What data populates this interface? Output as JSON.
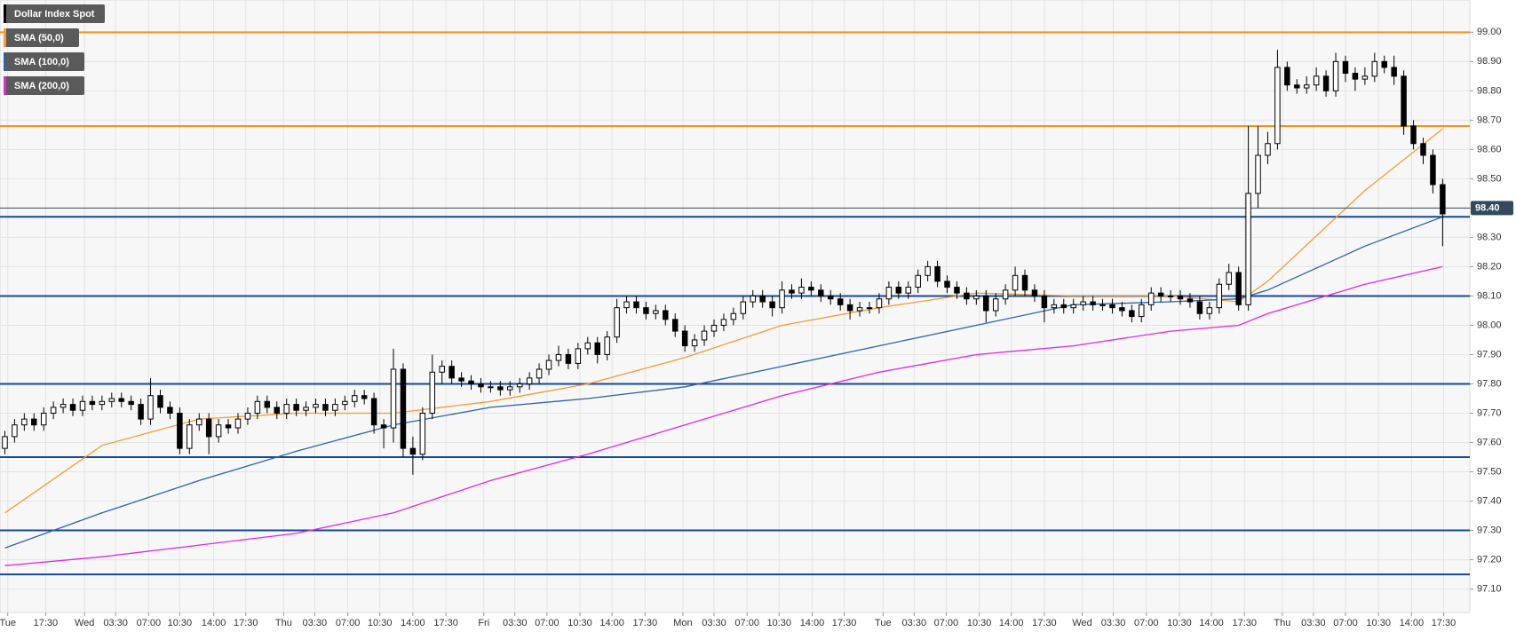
{
  "chart_data": {
    "type": "candlestick",
    "instrument": {
      "name": "Dollar Index Spot",
      "color": "#000000",
      "up_color": "#ffffff",
      "down_color": "#000000"
    },
    "ylim": [
      97.02,
      99.11
    ],
    "yticks": [
      {
        "value": 97.1,
        "label": "97.10"
      },
      {
        "value": 97.2,
        "label": "97.20"
      },
      {
        "value": 97.3,
        "label": "97.30"
      },
      {
        "value": 97.4,
        "label": "97.40"
      },
      {
        "value": 97.5,
        "label": "97.50"
      },
      {
        "value": 97.6,
        "label": "97.60"
      },
      {
        "value": 97.7,
        "label": "97.70"
      },
      {
        "value": 97.8,
        "label": "97.80"
      },
      {
        "value": 97.9,
        "label": "97.90"
      },
      {
        "value": 98.0,
        "label": "98.00"
      },
      {
        "value": 98.1,
        "label": "98.10"
      },
      {
        "value": 98.2,
        "label": "98.20"
      },
      {
        "value": 98.3,
        "label": "98.30"
      },
      {
        "value": 98.4,
        "label": "98.40"
      },
      {
        "value": 98.5,
        "label": "98.50"
      },
      {
        "value": 98.6,
        "label": "98.60"
      },
      {
        "value": 98.7,
        "label": "98.70"
      },
      {
        "value": 98.8,
        "label": "98.80"
      },
      {
        "value": 98.9,
        "label": "98.90"
      },
      {
        "value": 99.0,
        "label": "99.00"
      }
    ],
    "xlim": [
      -0.5,
      150.8
    ],
    "xticks": [
      {
        "value": 0.3,
        "label": "Tue"
      },
      {
        "value": 4.2,
        "label": "17:30"
      },
      {
        "value": 8.2,
        "label": "Wed"
      },
      {
        "value": 11.4,
        "label": "03:30"
      },
      {
        "value": 14.8,
        "label": "07:00"
      },
      {
        "value": 18.0,
        "label": "10:30"
      },
      {
        "value": 21.5,
        "label": "14:00"
      },
      {
        "value": 24.8,
        "label": "17:30"
      },
      {
        "value": 28.7,
        "label": "Thu"
      },
      {
        "value": 31.9,
        "label": "03:30"
      },
      {
        "value": 35.3,
        "label": "07:00"
      },
      {
        "value": 38.6,
        "label": "10:30"
      },
      {
        "value": 42.0,
        "label": "14:00"
      },
      {
        "value": 45.4,
        "label": "17:30"
      },
      {
        "value": 49.3,
        "label": "Fri"
      },
      {
        "value": 52.5,
        "label": "03:30"
      },
      {
        "value": 55.8,
        "label": "07:00"
      },
      {
        "value": 59.2,
        "label": "10:30"
      },
      {
        "value": 62.5,
        "label": "14:00"
      },
      {
        "value": 65.9,
        "label": "17:30"
      },
      {
        "value": 69.8,
        "label": "Mon"
      },
      {
        "value": 73.0,
        "label": "03:30"
      },
      {
        "value": 76.4,
        "label": "07:00"
      },
      {
        "value": 79.7,
        "label": "10:30"
      },
      {
        "value": 83.1,
        "label": "14:00"
      },
      {
        "value": 86.4,
        "label": "17:30"
      },
      {
        "value": 90.4,
        "label": "Tue"
      },
      {
        "value": 93.6,
        "label": "03:30"
      },
      {
        "value": 96.9,
        "label": "07:00"
      },
      {
        "value": 100.3,
        "label": "10:30"
      },
      {
        "value": 103.6,
        "label": "14:00"
      },
      {
        "value": 107.0,
        "label": "17:30"
      },
      {
        "value": 110.9,
        "label": "Wed"
      },
      {
        "value": 114.1,
        "label": "03:30"
      },
      {
        "value": 117.5,
        "label": "07:00"
      },
      {
        "value": 120.9,
        "label": "10:30"
      },
      {
        "value": 124.2,
        "label": "14:00"
      },
      {
        "value": 127.6,
        "label": "17:30"
      },
      {
        "value": 131.5,
        "label": "Thu"
      },
      {
        "value": 134.7,
        "label": "03:30"
      },
      {
        "value": 138.0,
        "label": "07:00"
      },
      {
        "value": 141.4,
        "label": "10:30"
      },
      {
        "value": 144.8,
        "label": "14:00"
      },
      {
        "value": 148.1,
        "label": "17:30"
      }
    ],
    "grid": true,
    "ohlc": [
      [
        97.58,
        97.64,
        97.56,
        97.62
      ],
      [
        97.62,
        97.68,
        97.6,
        97.66
      ],
      [
        97.66,
        97.7,
        97.64,
        97.68
      ],
      [
        97.68,
        97.7,
        97.64,
        97.66
      ],
      [
        97.66,
        97.72,
        97.64,
        97.7
      ],
      [
        97.7,
        97.74,
        97.68,
        97.72
      ],
      [
        97.72,
        97.75,
        97.7,
        97.73
      ],
      [
        97.73,
        97.75,
        97.69,
        97.71
      ],
      [
        97.71,
        97.76,
        97.69,
        97.74
      ],
      [
        97.74,
        97.76,
        97.71,
        97.73
      ],
      [
        97.73,
        97.76,
        97.71,
        97.74
      ],
      [
        97.74,
        97.77,
        97.72,
        97.75
      ],
      [
        97.75,
        97.77,
        97.72,
        97.74
      ],
      [
        97.74,
        97.76,
        97.71,
        97.73
      ],
      [
        97.73,
        97.75,
        97.66,
        97.68
      ],
      [
        97.68,
        97.82,
        97.66,
        97.76
      ],
      [
        97.76,
        97.78,
        97.7,
        97.72
      ],
      [
        97.72,
        97.74,
        97.68,
        97.7
      ],
      [
        97.7,
        97.72,
        97.56,
        97.58
      ],
      [
        97.58,
        97.68,
        97.56,
        97.66
      ],
      [
        97.66,
        97.7,
        97.64,
        97.68
      ],
      [
        97.68,
        97.7,
        97.56,
        97.62
      ],
      [
        97.62,
        97.68,
        97.6,
        97.66
      ],
      [
        97.66,
        97.68,
        97.63,
        97.65
      ],
      [
        97.65,
        97.7,
        97.63,
        97.68
      ],
      [
        97.68,
        97.72,
        97.66,
        97.7
      ],
      [
        97.7,
        97.76,
        97.68,
        97.74
      ],
      [
        97.74,
        97.76,
        97.7,
        97.72
      ],
      [
        97.72,
        97.74,
        97.68,
        97.7
      ],
      [
        97.7,
        97.75,
        97.68,
        97.73
      ],
      [
        97.73,
        97.75,
        97.69,
        97.71
      ],
      [
        97.71,
        97.74,
        97.69,
        97.72
      ],
      [
        97.72,
        97.75,
        97.7,
        97.73
      ],
      [
        97.73,
        97.75,
        97.69,
        97.71
      ],
      [
        97.71,
        97.75,
        97.69,
        97.73
      ],
      [
        97.73,
        97.76,
        97.71,
        97.74
      ],
      [
        97.74,
        97.78,
        97.72,
        97.76
      ],
      [
        97.76,
        97.78,
        97.73,
        97.75
      ],
      [
        97.75,
        97.77,
        97.63,
        97.66
      ],
      [
        97.66,
        97.68,
        97.58,
        97.65
      ],
      [
        97.65,
        97.92,
        97.6,
        97.85
      ],
      [
        97.85,
        97.87,
        97.55,
        97.58
      ],
      [
        97.58,
        97.62,
        97.49,
        97.56
      ],
      [
        97.56,
        97.72,
        97.54,
        97.7
      ],
      [
        97.7,
        97.9,
        97.68,
        97.84
      ],
      [
        97.84,
        97.88,
        97.8,
        97.86
      ],
      [
        97.86,
        97.88,
        97.8,
        97.82
      ],
      [
        97.82,
        97.84,
        97.79,
        97.81
      ],
      [
        97.81,
        97.83,
        97.78,
        97.8
      ],
      [
        97.8,
        97.82,
        97.77,
        97.79
      ],
      [
        97.79,
        97.81,
        97.77,
        97.79
      ],
      [
        97.79,
        97.81,
        97.76,
        97.78
      ],
      [
        97.78,
        97.81,
        97.76,
        97.79
      ],
      [
        97.79,
        97.82,
        97.77,
        97.8
      ],
      [
        97.8,
        97.84,
        97.78,
        97.82
      ],
      [
        97.82,
        97.87,
        97.8,
        97.85
      ],
      [
        97.85,
        97.9,
        97.83,
        97.88
      ],
      [
        97.88,
        97.93,
        97.86,
        97.9
      ],
      [
        97.9,
        97.92,
        97.85,
        97.87
      ],
      [
        97.87,
        97.94,
        97.85,
        97.92
      ],
      [
        97.92,
        97.96,
        97.9,
        97.94
      ],
      [
        97.94,
        97.96,
        97.87,
        97.9
      ],
      [
        97.9,
        97.98,
        97.88,
        97.96
      ],
      [
        97.96,
        98.09,
        97.94,
        98.06
      ],
      [
        98.06,
        98.1,
        98.04,
        98.08
      ],
      [
        98.08,
        98.1,
        98.04,
        98.06
      ],
      [
        98.06,
        98.08,
        98.02,
        98.04
      ],
      [
        98.04,
        98.07,
        98.02,
        98.05
      ],
      [
        98.05,
        98.07,
        98.0,
        98.02
      ],
      [
        98.02,
        98.04,
        97.96,
        97.98
      ],
      [
        97.98,
        98.0,
        97.91,
        97.93
      ],
      [
        97.93,
        97.97,
        97.91,
        97.95
      ],
      [
        97.95,
        98.0,
        97.93,
        97.98
      ],
      [
        97.98,
        98.02,
        97.96,
        98.0
      ],
      [
        98.0,
        98.04,
        97.98,
        98.02
      ],
      [
        98.02,
        98.06,
        98.0,
        98.04
      ],
      [
        98.04,
        98.1,
        98.02,
        98.08
      ],
      [
        98.08,
        98.12,
        98.06,
        98.1
      ],
      [
        98.1,
        98.12,
        98.06,
        98.08
      ],
      [
        98.08,
        98.1,
        98.03,
        98.06
      ],
      [
        98.06,
        98.15,
        98.04,
        98.12
      ],
      [
        98.12,
        98.14,
        98.09,
        98.11
      ],
      [
        98.11,
        98.16,
        98.09,
        98.13
      ],
      [
        98.13,
        98.15,
        98.1,
        98.12
      ],
      [
        98.12,
        98.14,
        98.08,
        98.1
      ],
      [
        98.1,
        98.12,
        98.07,
        98.09
      ],
      [
        98.09,
        98.11,
        98.05,
        98.07
      ],
      [
        98.07,
        98.09,
        98.02,
        98.05
      ],
      [
        98.05,
        98.08,
        98.03,
        98.06
      ],
      [
        98.06,
        98.08,
        98.04,
        98.06
      ],
      [
        98.06,
        98.11,
        98.04,
        98.09
      ],
      [
        98.09,
        98.15,
        98.07,
        98.13
      ],
      [
        98.13,
        98.15,
        98.09,
        98.11
      ],
      [
        98.11,
        98.15,
        98.09,
        98.13
      ],
      [
        98.13,
        98.19,
        98.11,
        98.17
      ],
      [
        98.17,
        98.22,
        98.15,
        98.2
      ],
      [
        98.2,
        98.22,
        98.13,
        98.15
      ],
      [
        98.15,
        98.17,
        98.11,
        98.13
      ],
      [
        98.13,
        98.15,
        98.09,
        98.11
      ],
      [
        98.11,
        98.13,
        98.07,
        98.09
      ],
      [
        98.09,
        98.12,
        98.07,
        98.1
      ],
      [
        98.1,
        98.12,
        98.01,
        98.05
      ],
      [
        98.05,
        98.11,
        98.03,
        98.09
      ],
      [
        98.09,
        98.14,
        98.07,
        98.12
      ],
      [
        98.12,
        98.2,
        98.1,
        98.17
      ],
      [
        98.17,
        98.19,
        98.1,
        98.12
      ],
      [
        98.12,
        98.14,
        98.08,
        98.1
      ],
      [
        98.1,
        98.12,
        98.01,
        98.06
      ],
      [
        98.06,
        98.09,
        98.04,
        98.07
      ],
      [
        98.07,
        98.09,
        98.04,
        98.06
      ],
      [
        98.06,
        98.09,
        98.04,
        98.07
      ],
      [
        98.07,
        98.1,
        98.05,
        98.08
      ],
      [
        98.08,
        98.1,
        98.05,
        98.07
      ],
      [
        98.07,
        98.09,
        98.05,
        98.07
      ],
      [
        98.07,
        98.09,
        98.04,
        98.06
      ],
      [
        98.06,
        98.08,
        98.03,
        98.05
      ],
      [
        98.05,
        98.07,
        98.01,
        98.03
      ],
      [
        98.03,
        98.09,
        98.01,
        98.07
      ],
      [
        98.07,
        98.13,
        98.05,
        98.11
      ],
      [
        98.11,
        98.13,
        98.08,
        98.1
      ],
      [
        98.1,
        98.12,
        98.08,
        98.1
      ],
      [
        98.1,
        98.12,
        98.07,
        98.09
      ],
      [
        98.09,
        98.11,
        98.06,
        98.08
      ],
      [
        98.08,
        98.1,
        98.02,
        98.04
      ],
      [
        98.04,
        98.08,
        98.02,
        98.06
      ],
      [
        98.06,
        98.16,
        98.04,
        98.14
      ],
      [
        98.14,
        98.21,
        98.12,
        98.18
      ],
      [
        98.18,
        98.2,
        98.05,
        98.07
      ],
      [
        98.07,
        98.68,
        98.05,
        98.45
      ],
      [
        98.45,
        98.68,
        98.4,
        98.58
      ],
      [
        98.58,
        98.66,
        98.55,
        98.62
      ],
      [
        98.62,
        98.94,
        98.6,
        98.88
      ],
      [
        98.88,
        98.9,
        98.8,
        98.82
      ],
      [
        98.82,
        98.84,
        98.79,
        98.81
      ],
      [
        98.81,
        98.85,
        98.79,
        98.82
      ],
      [
        98.82,
        98.88,
        98.8,
        98.85
      ],
      [
        98.85,
        98.87,
        98.78,
        98.8
      ],
      [
        98.8,
        98.93,
        98.78,
        98.9
      ],
      [
        98.9,
        98.92,
        98.83,
        98.86
      ],
      [
        98.86,
        98.88,
        98.8,
        98.84
      ],
      [
        98.84,
        98.88,
        98.82,
        98.85
      ],
      [
        98.85,
        98.93,
        98.83,
        98.9
      ],
      [
        98.9,
        98.92,
        98.86,
        98.88
      ],
      [
        98.88,
        98.92,
        98.82,
        98.85
      ],
      [
        98.85,
        98.87,
        98.65,
        98.68
      ],
      [
        98.68,
        98.7,
        98.6,
        98.62
      ],
      [
        98.62,
        98.64,
        98.55,
        98.58
      ],
      [
        98.58,
        98.6,
        98.45,
        98.48
      ],
      [
        98.48,
        98.5,
        98.27,
        98.38
      ]
    ],
    "overlays": [
      {
        "name": "SMA (50,0)",
        "color": "#f39c34",
        "x": [
          0,
          10,
          20,
          30,
          40,
          50,
          60,
          70,
          80,
          90,
          100,
          110,
          120,
          127,
          130,
          140,
          148
        ],
        "values": [
          97.36,
          97.59,
          97.68,
          97.7,
          97.7,
          97.74,
          97.8,
          97.89,
          98.0,
          98.06,
          98.11,
          98.1,
          98.1,
          98.08,
          98.15,
          98.46,
          98.67
        ]
      },
      {
        "name": "SMA (100,0)",
        "color": "#2d62a8",
        "x": [
          0,
          10,
          20,
          30,
          40,
          50,
          60,
          70,
          80,
          90,
          100,
          110,
          120,
          127,
          130,
          140,
          148
        ],
        "values": [
          97.24,
          97.36,
          97.47,
          97.57,
          97.66,
          97.72,
          97.75,
          97.79,
          97.86,
          97.93,
          98.0,
          98.07,
          98.08,
          98.09,
          98.12,
          98.27,
          98.37
        ]
      },
      {
        "name": "SMA (200,0)",
        "color": "#e028e0",
        "x": [
          0,
          10,
          20,
          30,
          40,
          50,
          60,
          70,
          80,
          90,
          100,
          110,
          120,
          127,
          130,
          140,
          148
        ],
        "values": [
          97.18,
          97.21,
          97.25,
          97.29,
          97.36,
          97.47,
          97.56,
          97.66,
          97.76,
          97.84,
          97.9,
          97.93,
          97.98,
          98.0,
          98.04,
          98.14,
          98.2
        ]
      }
    ],
    "levels": [
      {
        "value": 99.0,
        "color": "#f7921e"
      },
      {
        "value": 98.68,
        "color": "#f7921e"
      },
      {
        "value": 98.37,
        "color": "#16479a"
      },
      {
        "value": 98.1,
        "color": "#16479a"
      },
      {
        "value": 97.8,
        "color": "#16479a"
      },
      {
        "value": 97.55,
        "color": "#16479a"
      },
      {
        "value": 97.3,
        "color": "#16479a"
      },
      {
        "value": 97.15,
        "color": "#16479a"
      }
    ],
    "last_price": {
      "value": 98.4,
      "label": "98.40",
      "color": "#34495e"
    }
  }
}
